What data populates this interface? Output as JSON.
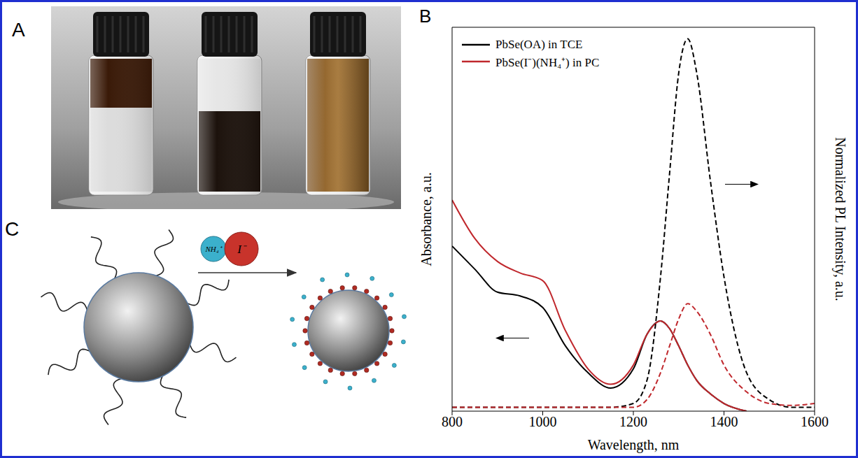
{
  "panels": {
    "A": {
      "letter": "A"
    },
    "B": {
      "letter": "B"
    },
    "C": {
      "letter": "C",
      "reagents": [
        "NH₄⁺",
        "I⁻"
      ]
    }
  },
  "chart_data": {
    "type": "line",
    "xlabel": "Wavelength, nm",
    "ylabel": "Absorbance, a.u.",
    "y2label": "Normalized PL Intensity, a.u.",
    "x": [
      800,
      850,
      900,
      950,
      1000,
      1050,
      1100,
      1150,
      1200,
      1230,
      1260,
      1280,
      1300,
      1320,
      1340,
      1370,
      1400,
      1450,
      1500,
      1550,
      1600
    ],
    "xlim": [
      800,
      1600
    ],
    "xticks": [
      800,
      1000,
      1200,
      1400,
      1600
    ],
    "ylim": [
      0,
      1
    ],
    "yticks": [],
    "y2lim": [
      0,
      1
    ],
    "y2ticks": [],
    "tick_labels": "x",
    "legend": "upper left",
    "series": [
      {
        "name": "PbSe(OA) in TCE",
        "color": "#000000",
        "line_style": "solid",
        "values": [
          0.43,
          0.37,
          0.31,
          0.3,
          0.27,
          0.17,
          0.1,
          0.06,
          0.11,
          0.2,
          0.235,
          0.215,
          0.17,
          0.12,
          0.08,
          0.045,
          0.02,
          0.0,
          null,
          null,
          null
        ]
      },
      {
        "name": "PbSe(I⁻)(NH₄⁺) in PC",
        "color": "#c0282d",
        "line_style": "solid",
        "values": [
          0.55,
          0.45,
          0.39,
          0.36,
          0.34,
          0.21,
          0.11,
          0.07,
          0.12,
          0.2,
          0.235,
          0.215,
          0.17,
          0.12,
          0.08,
          0.045,
          0.02,
          0.0,
          null,
          null,
          null
        ]
      },
      {
        "color": "#000000",
        "line_style": "dashed",
        "axis": "y2",
        "values": [
          0.01,
          0.01,
          0.01,
          0.01,
          0.01,
          0.01,
          0.01,
          0.01,
          0.02,
          0.08,
          0.35,
          0.62,
          0.88,
          0.97,
          0.88,
          0.6,
          0.35,
          0.1,
          0.03,
          0.01,
          0.01
        ]
      },
      {
        "color": "#c0282d",
        "line_style": "dashed",
        "axis": "y2",
        "values": [
          0.01,
          0.01,
          0.01,
          0.01,
          0.01,
          0.01,
          0.01,
          0.01,
          0.01,
          0.03,
          0.1,
          0.17,
          0.24,
          0.28,
          0.26,
          0.2,
          0.12,
          0.05,
          0.02,
          0.015,
          0.02
        ]
      }
    ]
  }
}
